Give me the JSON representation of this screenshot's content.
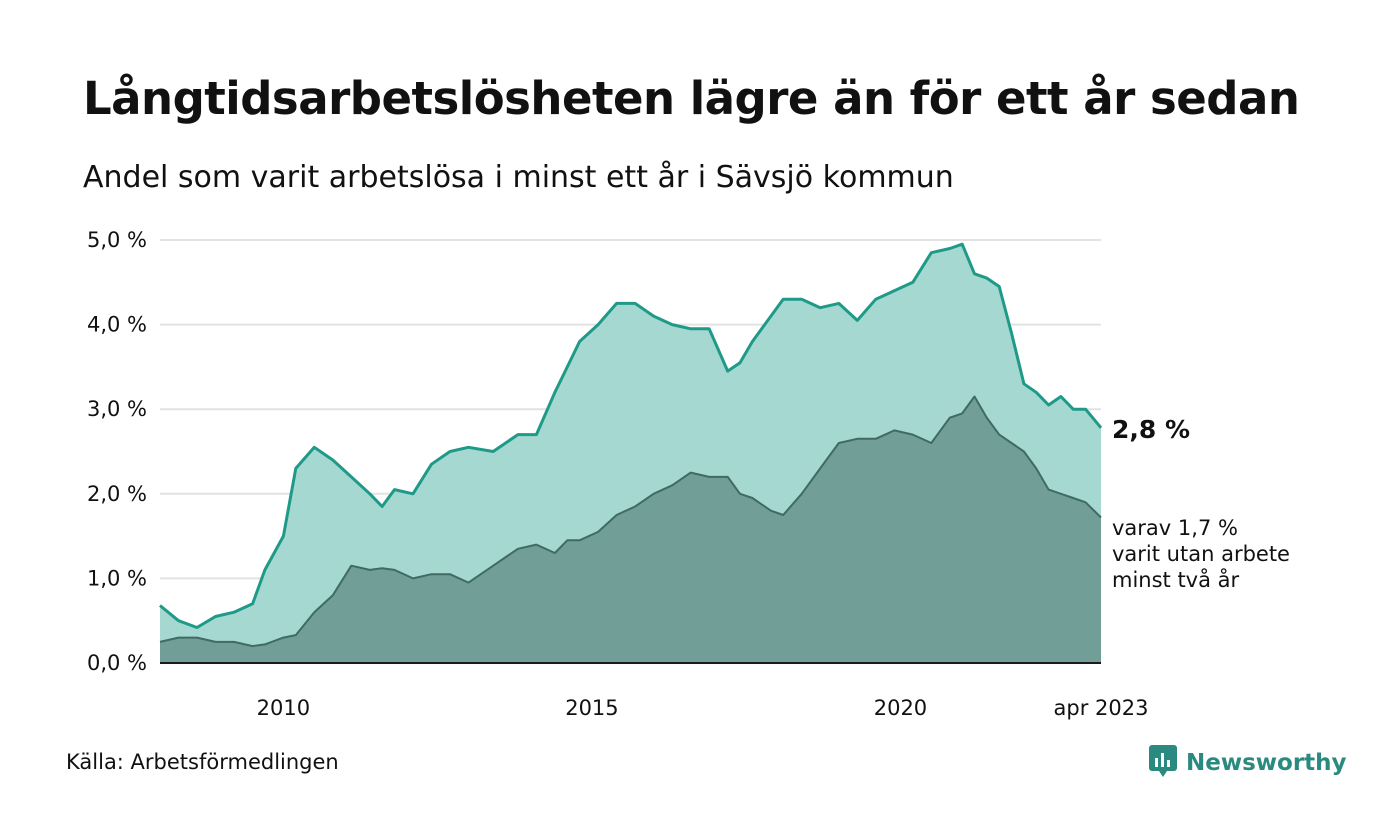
{
  "title": "Långtidsarbetslösheten lägre än för ett år sedan",
  "subtitle": "Andel som varit arbetslösa i minst ett år i Sävsjö kommun",
  "source": "Källa: Arbetsförmedlingen",
  "brand": {
    "name": "Newsworthy",
    "icon": "bar-chart-speech-icon",
    "color": "#2a8a80"
  },
  "colors": {
    "total_line": "#1f9a88",
    "total_fill": "#a4d8d1",
    "long_line": "#3f6b63",
    "long_fill": "#719f97",
    "grid": "#e2e2e2"
  },
  "chart_data": {
    "type": "area",
    "x_range": [
      2008.0,
      2023.25
    ],
    "ylim": [
      0,
      5
    ],
    "grid": true,
    "y_ticks": [
      0,
      1,
      2,
      3,
      4,
      5
    ],
    "y_tick_labels": [
      "0,0 %",
      "1,0 %",
      "2,0 %",
      "3,0 %",
      "4,0 %",
      "5,0 %"
    ],
    "x_ticks": [
      2010,
      2015,
      2020,
      2023.25
    ],
    "x_tick_labels": [
      "2010",
      "2015",
      "2020",
      "apr 2023"
    ],
    "end_label_total": "2,8 %",
    "end_label_long": [
      "varav 1,7 %",
      "varit utan arbete",
      "minst två år"
    ],
    "series": [
      {
        "key": "total",
        "x": [
          2008.0,
          2008.3,
          2008.6,
          2008.9,
          2009.2,
          2009.5,
          2009.7,
          2010.0,
          2010.2,
          2010.5,
          2010.8,
          2011.1,
          2011.4,
          2011.6,
          2011.8,
          2012.1,
          2012.4,
          2012.7,
          2013.0,
          2013.4,
          2013.8,
          2014.1,
          2014.4,
          2014.6,
          2014.8,
          2015.1,
          2015.4,
          2015.7,
          2016.0,
          2016.3,
          2016.6,
          2016.9,
          2017.2,
          2017.4,
          2017.6,
          2017.9,
          2018.1,
          2018.4,
          2018.7,
          2019.0,
          2019.3,
          2019.6,
          2019.9,
          2020.2,
          2020.5,
          2020.8,
          2021.0,
          2021.2,
          2021.4,
          2021.6,
          2021.8,
          2022.0,
          2022.2,
          2022.4,
          2022.6,
          2022.8,
          2023.0,
          2023.25
        ],
        "y": [
          0.68,
          0.5,
          0.42,
          0.55,
          0.6,
          0.7,
          1.1,
          1.5,
          2.3,
          2.55,
          2.4,
          2.2,
          2.0,
          1.85,
          2.05,
          2.0,
          2.35,
          2.5,
          2.55,
          2.5,
          2.7,
          2.7,
          3.2,
          3.5,
          3.8,
          4.0,
          4.25,
          4.25,
          4.1,
          4.0,
          3.95,
          3.95,
          3.45,
          3.55,
          3.8,
          4.1,
          4.3,
          4.3,
          4.2,
          4.25,
          4.05,
          4.3,
          4.4,
          4.5,
          4.85,
          4.9,
          4.95,
          4.6,
          4.55,
          4.45,
          3.9,
          3.3,
          3.2,
          3.05,
          3.15,
          3.0,
          3.0,
          2.78
        ]
      },
      {
        "key": "long",
        "x": [
          2008.0,
          2008.3,
          2008.6,
          2008.9,
          2009.2,
          2009.5,
          2009.7,
          2010.0,
          2010.2,
          2010.5,
          2010.8,
          2011.1,
          2011.4,
          2011.6,
          2011.8,
          2012.1,
          2012.4,
          2012.7,
          2013.0,
          2013.4,
          2013.8,
          2014.1,
          2014.4,
          2014.6,
          2014.8,
          2015.1,
          2015.4,
          2015.7,
          2016.0,
          2016.3,
          2016.6,
          2016.9,
          2017.2,
          2017.4,
          2017.6,
          2017.9,
          2018.1,
          2018.4,
          2018.7,
          2019.0,
          2019.3,
          2019.6,
          2019.9,
          2020.2,
          2020.5,
          2020.8,
          2021.0,
          2021.2,
          2021.4,
          2021.6,
          2021.8,
          2022.0,
          2022.2,
          2022.4,
          2022.6,
          2022.8,
          2023.0,
          2023.25
        ],
        "y": [
          0.25,
          0.3,
          0.3,
          0.25,
          0.25,
          0.2,
          0.22,
          0.3,
          0.33,
          0.6,
          0.8,
          1.15,
          1.1,
          1.12,
          1.1,
          1.0,
          1.05,
          1.05,
          0.95,
          1.15,
          1.35,
          1.4,
          1.3,
          1.45,
          1.45,
          1.55,
          1.75,
          1.85,
          2.0,
          2.1,
          2.25,
          2.2,
          2.2,
          2.0,
          1.95,
          1.8,
          1.75,
          2.0,
          2.3,
          2.6,
          2.65,
          2.65,
          2.75,
          2.7,
          2.6,
          2.9,
          2.95,
          3.15,
          2.9,
          2.7,
          2.6,
          2.5,
          2.3,
          2.05,
          2.0,
          1.95,
          1.9,
          1.72
        ]
      }
    ]
  }
}
